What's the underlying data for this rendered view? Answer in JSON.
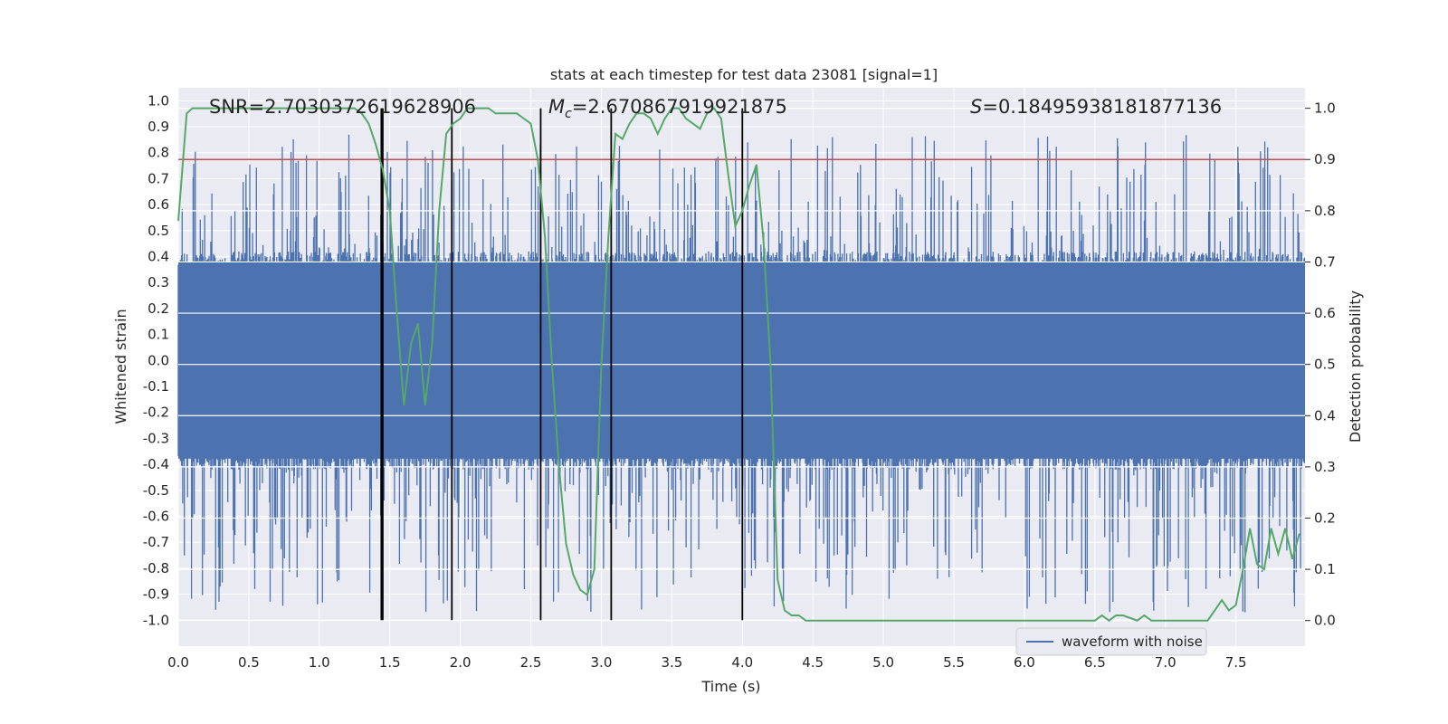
{
  "chart_data": {
    "type": "line",
    "title": "stats at each timestep for test data 23081 [signal=1]",
    "xlabel": "Time (s)",
    "ylabel_left": "Whitened strain",
    "ylabel_right": "Detection probability",
    "xlim": [
      0.0,
      7.99
    ],
    "ylim_left": [
      -1.1,
      1.05
    ],
    "ylim_right": [
      -0.05,
      1.04
    ],
    "x_ticks": [
      "0.0",
      "0.5",
      "1.0",
      "1.5",
      "2.0",
      "2.5",
      "3.0",
      "3.5",
      "4.0",
      "4.5",
      "5.0",
      "5.5",
      "6.0",
      "6.5",
      "7.0",
      "7.5"
    ],
    "x_tick_values": [
      0.0,
      0.5,
      1.0,
      1.5,
      2.0,
      2.5,
      3.0,
      3.5,
      4.0,
      4.5,
      5.0,
      5.5,
      6.0,
      6.5,
      7.0,
      7.5
    ],
    "y_left_ticks": [
      "1.0",
      "0.9",
      "0.8",
      "0.7",
      "0.6",
      "0.5",
      "0.4",
      "0.3",
      "0.2",
      "0.1",
      "0.0",
      "-0.1",
      "-0.2",
      "-0.3",
      "-0.4",
      "-0.5",
      "-0.6",
      "-0.7",
      "-0.8",
      "-0.9",
      "-1.0"
    ],
    "y_left_tick_values": [
      1.0,
      0.9,
      0.8,
      0.7,
      0.6,
      0.5,
      0.4,
      0.3,
      0.2,
      0.1,
      0.0,
      -0.1,
      -0.2,
      -0.3,
      -0.4,
      -0.5,
      -0.6,
      -0.7,
      -0.8,
      -0.9,
      -1.0
    ],
    "y_right_ticks": [
      "1.0",
      "0.9",
      "0.8",
      "0.7",
      "0.6",
      "0.5",
      "0.4",
      "0.3",
      "0.2",
      "0.1",
      "0.0"
    ],
    "y_right_tick_values": [
      1.0,
      0.9,
      0.8,
      0.7,
      0.6,
      0.5,
      0.4,
      0.3,
      0.2,
      0.1,
      0.0
    ],
    "annotations": {
      "snr_text": "SNR=2.7030372619628906",
      "mc_label": "M",
      "mc_sub": "c",
      "mc_value": "=2.670867919921875",
      "s_label": "S",
      "s_value": "=0.18495938181877136"
    },
    "threshold": {
      "value": 0.9,
      "axis": "right",
      "color": "#c44e52"
    },
    "vertical_lines": [
      1.44,
      1.45,
      1.94,
      2.57,
      3.07,
      4.0
    ],
    "legend": {
      "label": "waveform with noise",
      "position": "lower-right"
    },
    "series": [
      {
        "name": "waveform with noise",
        "axis": "left",
        "color": "#4c72b0",
        "type": "noise-waveform",
        "samples": 2048,
        "core_amplitude": 0.42,
        "spike_range": [
          -0.97,
          0.87
        ]
      },
      {
        "name": "detection probability",
        "axis": "right",
        "color": "#55a868",
        "x": [
          0.0,
          0.06,
          0.1,
          0.2,
          0.3,
          0.5,
          0.8,
          1.0,
          1.1,
          1.2,
          1.25,
          1.3,
          1.35,
          1.4,
          1.45,
          1.5,
          1.55,
          1.6,
          1.65,
          1.7,
          1.75,
          1.8,
          1.85,
          1.9,
          1.95,
          2.0,
          2.05,
          2.1,
          2.15,
          2.2,
          2.25,
          2.3,
          2.35,
          2.4,
          2.45,
          2.5,
          2.55,
          2.6,
          2.65,
          2.7,
          2.75,
          2.8,
          2.85,
          2.9,
          2.95,
          3.0,
          3.05,
          3.1,
          3.15,
          3.2,
          3.25,
          3.3,
          3.35,
          3.4,
          3.45,
          3.5,
          3.55,
          3.6,
          3.65,
          3.7,
          3.75,
          3.8,
          3.85,
          3.9,
          3.95,
          4.0,
          4.05,
          4.1,
          4.15,
          4.2,
          4.25,
          4.3,
          4.35,
          4.4,
          4.45,
          4.5,
          4.55,
          4.6,
          4.7,
          4.8,
          5.0,
          5.2,
          5.4,
          5.6,
          6.0,
          6.4,
          6.5,
          6.55,
          6.6,
          6.65,
          6.7,
          6.8,
          6.85,
          6.9,
          7.0,
          7.1,
          7.2,
          7.3,
          7.35,
          7.4,
          7.45,
          7.5,
          7.55,
          7.6,
          7.65,
          7.7,
          7.75,
          7.8,
          7.85,
          7.9,
          7.95
        ],
        "values": [
          0.78,
          0.99,
          1.0,
          1.0,
          1.0,
          1.0,
          1.0,
          1.0,
          1.0,
          1.0,
          1.0,
          0.99,
          0.97,
          0.93,
          0.88,
          0.8,
          0.6,
          0.42,
          0.54,
          0.58,
          0.42,
          0.54,
          0.8,
          0.95,
          0.97,
          0.98,
          1.0,
          1.0,
          1.0,
          1.0,
          0.99,
          0.99,
          0.99,
          0.99,
          0.98,
          0.97,
          0.9,
          0.75,
          0.5,
          0.3,
          0.15,
          0.09,
          0.06,
          0.05,
          0.1,
          0.5,
          0.75,
          0.95,
          0.94,
          0.97,
          0.99,
          0.99,
          0.98,
          0.95,
          0.98,
          1.0,
          1.0,
          0.98,
          0.97,
          0.96,
          0.99,
          1.0,
          0.98,
          0.87,
          0.77,
          0.8,
          0.85,
          0.89,
          0.74,
          0.5,
          0.08,
          0.02,
          0.01,
          0.01,
          0.0,
          0.0,
          0.0,
          0.0,
          0.0,
          0.0,
          0.0,
          0.0,
          0.0,
          0.0,
          0.0,
          0.0,
          0.0,
          0.01,
          0.0,
          0.01,
          0.01,
          0.0,
          0.01,
          0.0,
          0.0,
          0.0,
          0.0,
          0.0,
          0.02,
          0.04,
          0.02,
          0.03,
          0.1,
          0.18,
          0.11,
          0.1,
          0.18,
          0.13,
          0.18,
          0.12,
          0.17
        ]
      }
    ]
  }
}
